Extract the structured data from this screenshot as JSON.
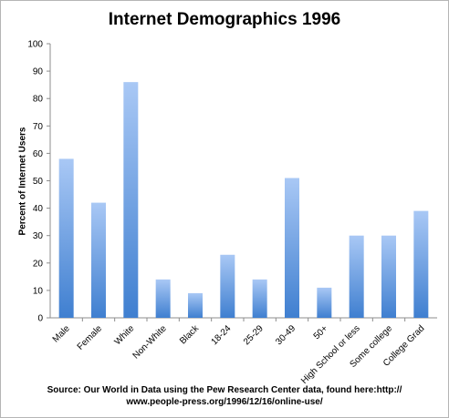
{
  "chart_data": {
    "type": "bar",
    "title": "Internet Demographics 1996",
    "xlabel": "",
    "ylabel": "Percent of Internet Users",
    "ylim": [
      0,
      100
    ],
    "yticks": [
      0,
      10,
      20,
      30,
      40,
      50,
      60,
      70,
      80,
      90,
      100
    ],
    "grid": false,
    "legend": "none",
    "categories": [
      "Male",
      "Female",
      "White",
      "Non-White",
      "Black",
      "18-24",
      "25-29",
      "30-49",
      "50+",
      "High School or less",
      "Some college",
      "College Grad"
    ],
    "values": [
      58,
      42,
      86,
      14,
      9,
      23,
      14,
      51,
      11,
      30,
      30,
      39
    ],
    "colors": {
      "bar_top": "#a9c8f5",
      "bar_bottom": "#3f7fd0",
      "axis": "#8c8c8c"
    }
  },
  "source_line1": "Source: Our World in Data using the Pew Research Center data, found here:http://",
  "source_line2": "www.people-press.org/1996/12/16/online-use/"
}
